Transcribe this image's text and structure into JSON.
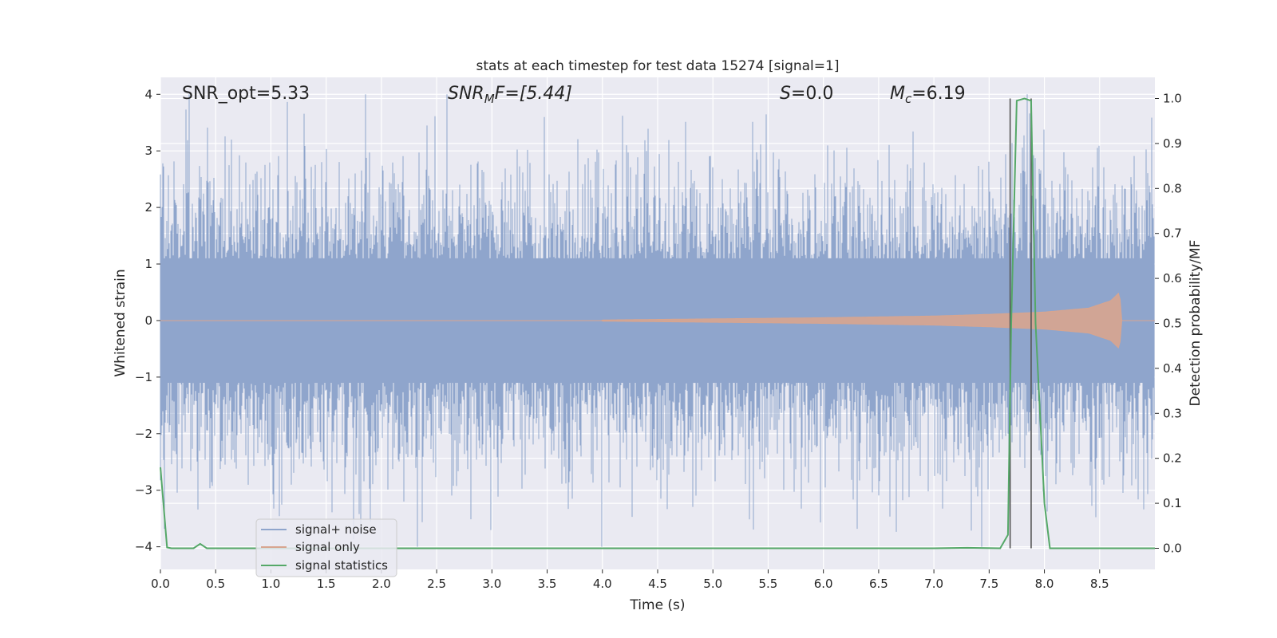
{
  "chart_data": {
    "type": "line",
    "title": "stats at each timestep for test data 15274 [signal=1]",
    "xlabel": "Time (s)",
    "ylabel": "Whitened strain",
    "ylabel_right": "Detection probability/MF",
    "xlim": [
      0.0,
      9.0
    ],
    "ylim": [
      -4.4,
      4.3
    ],
    "ylim_right": [
      -0.047,
      1.047
    ],
    "x_ticks": [
      "0.0",
      "0.5",
      "1.0",
      "1.5",
      "2.0",
      "2.5",
      "3.0",
      "3.5",
      "4.0",
      "4.5",
      "5.0",
      "5.5",
      "6.0",
      "6.5",
      "7.0",
      "7.5",
      "8.0",
      "8.5"
    ],
    "y_ticks": [
      "4",
      "3",
      "2",
      "1",
      "0",
      "−1",
      "−2",
      "−3",
      "−4"
    ],
    "y_right_ticks": [
      "1.0",
      "0.9",
      "0.8",
      "0.7",
      "0.6",
      "0.5",
      "0.4",
      "0.3",
      "0.2",
      "0.1",
      "0.0"
    ],
    "grid": true,
    "legend_position": "lower-left",
    "annotations": {
      "snr_opt": "SNR_opt=5.33",
      "snr_mf_main": "SNR",
      "snr_mf_sub": "M",
      "snr_mf_rest": "F=[5.44]",
      "s_main": "S",
      "s_rest": "=0.0",
      "mc_main": "M",
      "mc_sub": "c",
      "mc_rest": "=6.19"
    },
    "series": [
      {
        "name": "signal+ noise",
        "color": "#8fa5cc",
        "description_values": "whitened noise, roughly -4 to 4 across 0-9 s"
      },
      {
        "name": "signal only",
        "color": "#d8a58f",
        "chirp": {
          "t": [
            4.0,
            5.0,
            6.0,
            7.0,
            7.5,
            8.0,
            8.4,
            8.6,
            8.68,
            8.7,
            9.0
          ],
          "amp": [
            0.01,
            0.03,
            0.05,
            0.08,
            0.11,
            0.15,
            0.22,
            0.35,
            0.5,
            0.0,
            0.0
          ]
        }
      },
      {
        "name": "signal statistics",
        "color": "#55a868",
        "axis": "right",
        "x": [
          0.0,
          0.06,
          0.1,
          0.15,
          0.3,
          0.36,
          0.42,
          0.5,
          1.0,
          2.0,
          3.0,
          4.0,
          5.0,
          6.0,
          7.0,
          7.3,
          7.6,
          7.67,
          7.7,
          7.75,
          7.82,
          7.88,
          7.92,
          8.0,
          8.05,
          9.0
        ],
        "y": [
          0.18,
          0.002,
          0.0,
          0.0,
          0.0,
          0.01,
          0.0,
          0.0,
          0.0,
          0.0,
          0.0,
          0.0,
          0.0,
          0.0,
          0.0,
          0.001,
          0.0,
          0.03,
          0.5,
          0.995,
          1.0,
          0.995,
          0.5,
          0.1,
          0.0,
          0.0
        ]
      }
    ],
    "vertical_lines_x": [
      7.69,
      7.88
    ],
    "vertical_lines_color": "#555555"
  }
}
